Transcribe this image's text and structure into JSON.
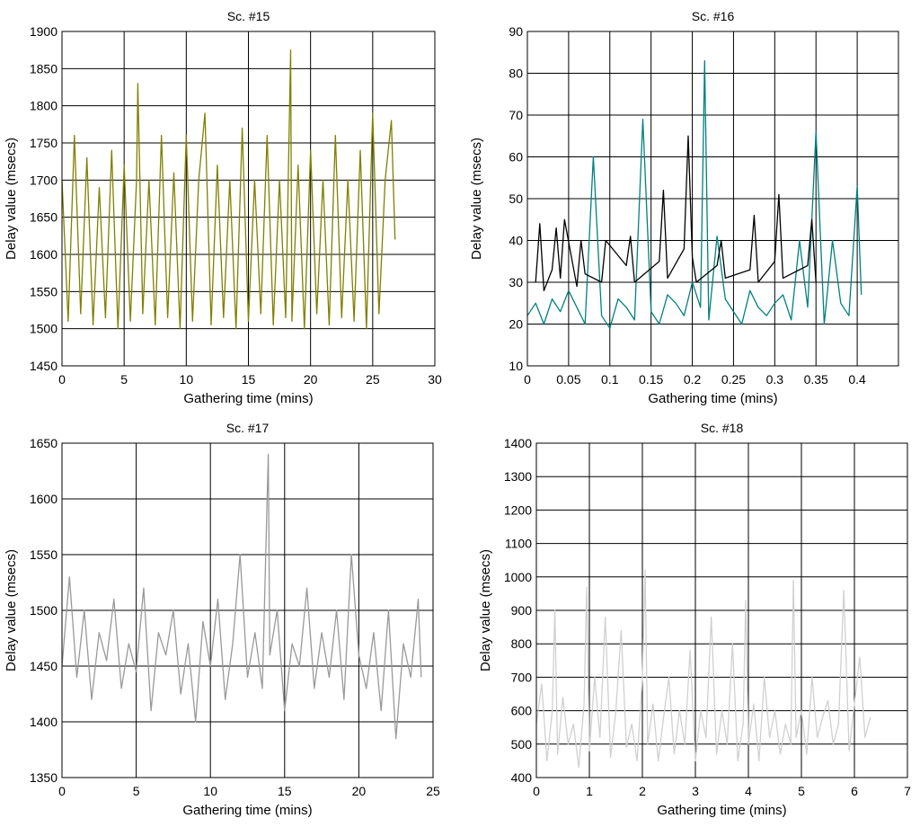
{
  "chart_data": [
    {
      "type": "line",
      "title": "Sc. #15",
      "xlabel": "Gathering time (mins)",
      "ylabel": "Delay value (msecs)",
      "xlim": [
        0,
        30
      ],
      "ylim": [
        1450,
        1900
      ],
      "xticks": [
        0,
        5,
        10,
        15,
        20,
        25,
        30
      ],
      "yticks": [
        1450,
        1500,
        1550,
        1600,
        1650,
        1700,
        1750,
        1800,
        1850,
        1900
      ],
      "xtick_labels": [
        "0",
        "5",
        "10",
        "15",
        "20",
        "25",
        "30"
      ],
      "ytick_labels": [
        "1450",
        "1500",
        "1550",
        "1600",
        "1650",
        "1700",
        "1750",
        "1800",
        "1850",
        "1900"
      ],
      "grid": true,
      "series": [
        {
          "color": "#808000",
          "x": [
            0,
            0.5,
            1,
            1.5,
            2,
            2.5,
            3,
            3.5,
            4,
            4.5,
            5,
            5.5,
            6,
            6.1,
            6.5,
            7,
            7.5,
            8,
            8.5,
            9,
            9.5,
            10,
            10.5,
            11,
            11.5,
            12,
            12.5,
            13,
            13.5,
            14,
            14.5,
            15,
            15.5,
            16,
            16.5,
            17,
            17.5,
            18,
            18.4,
            18.5,
            19,
            19.5,
            20,
            20.5,
            21,
            21.5,
            22,
            22.5,
            23,
            23.5,
            24,
            24.5,
            25,
            25.5,
            26,
            26.5,
            26.8
          ],
          "y": [
            1700,
            1510,
            1760,
            1520,
            1730,
            1505,
            1690,
            1515,
            1740,
            1500,
            1720,
            1510,
            1700,
            1830,
            1520,
            1700,
            1505,
            1760,
            1515,
            1710,
            1500,
            1760,
            1510,
            1700,
            1790,
            1505,
            1720,
            1515,
            1700,
            1500,
            1770,
            1510,
            1700,
            1520,
            1760,
            1505,
            1700,
            1515,
            1875,
            1510,
            1720,
            1500,
            1740,
            1520,
            1700,
            1505,
            1760,
            1515,
            1700,
            1510,
            1740,
            1500,
            1790,
            1520,
            1700,
            1780,
            1620
          ]
        }
      ]
    },
    {
      "type": "line",
      "title": "Sc. #16",
      "xlabel": "Gathering time (mins)",
      "ylabel": "Delay value (msecs)",
      "xlim": [
        0,
        0.45
      ],
      "ylim": [
        10,
        90
      ],
      "xticks": [
        0,
        0.05,
        0.1,
        0.15,
        0.2,
        0.25,
        0.3,
        0.35,
        0.4
      ],
      "yticks": [
        10,
        20,
        30,
        40,
        50,
        60,
        70,
        80,
        90
      ],
      "xtick_labels": [
        "0",
        "0.05",
        "0.1",
        "0.15",
        "0.2",
        "0.25",
        "0.3",
        "0.35",
        "0.4"
      ],
      "ytick_labels": [
        "10",
        "20",
        "30",
        "40",
        "50",
        "60",
        "70",
        "80",
        "90"
      ],
      "grid": true,
      "series": [
        {
          "color": "#008080",
          "x": [
            0,
            0.01,
            0.02,
            0.03,
            0.04,
            0.05,
            0.06,
            0.07,
            0.08,
            0.09,
            0.1,
            0.11,
            0.12,
            0.13,
            0.14,
            0.15,
            0.16,
            0.17,
            0.18,
            0.19,
            0.2,
            0.21,
            0.215,
            0.22,
            0.23,
            0.24,
            0.25,
            0.26,
            0.27,
            0.28,
            0.29,
            0.3,
            0.31,
            0.32,
            0.33,
            0.34,
            0.35,
            0.36,
            0.37,
            0.38,
            0.39,
            0.4,
            0.405
          ],
          "y": [
            22,
            25,
            20,
            26,
            23,
            28,
            24,
            20,
            60,
            22,
            19,
            26,
            24,
            21,
            69,
            23,
            20,
            27,
            25,
            22,
            30,
            24,
            83,
            21,
            41,
            26,
            23,
            20,
            28,
            24,
            22,
            25,
            27,
            21,
            40,
            24,
            66,
            20,
            40,
            25,
            22,
            53,
            27
          ]
        },
        {
          "color": "#000000",
          "x": [
            0.01,
            0.015,
            0.02,
            0.03,
            0.035,
            0.04,
            0.045,
            0.06,
            0.065,
            0.07,
            0.09,
            0.095,
            0.12,
            0.125,
            0.13,
            0.16,
            0.165,
            0.17,
            0.19,
            0.195,
            0.2,
            0.205,
            0.23,
            0.235,
            0.24,
            0.27,
            0.275,
            0.28,
            0.3,
            0.305,
            0.31,
            0.34,
            0.345,
            0.35
          ],
          "y": [
            30,
            44,
            28,
            33,
            43,
            31,
            45,
            29,
            40,
            32,
            30,
            40,
            34,
            41,
            30,
            35,
            52,
            31,
            38,
            65,
            36,
            30,
            34,
            40,
            31,
            33,
            46,
            30,
            35,
            51,
            31,
            34,
            45,
            30
          ]
        }
      ]
    },
    {
      "type": "line",
      "title": "Sc. #17",
      "xlabel": "Gathering time (mins)",
      "ylabel": "Delay value (msecs)",
      "xlim": [
        0,
        25
      ],
      "ylim": [
        1350,
        1650
      ],
      "xticks": [
        0,
        5,
        10,
        15,
        20,
        25
      ],
      "yticks": [
        1350,
        1400,
        1450,
        1500,
        1550,
        1600,
        1650
      ],
      "xtick_labels": [
        "0",
        "5",
        "10",
        "15",
        "20",
        "25"
      ],
      "ytick_labels": [
        "1350",
        "1400",
        "1450",
        "1500",
        "1550",
        "1600",
        "1650"
      ],
      "grid": true,
      "series": [
        {
          "color": "#999999",
          "x": [
            0,
            0.5,
            1,
            1.5,
            2,
            2.5,
            3,
            3.5,
            4,
            4.5,
            5,
            5.5,
            6,
            6.5,
            7,
            7.5,
            8,
            8.5,
            9,
            9.5,
            10,
            10.5,
            11,
            11.5,
            12,
            12.5,
            13,
            13.5,
            13.9,
            14,
            14.5,
            15,
            15.5,
            16,
            16.5,
            17,
            17.5,
            18,
            18.5,
            19,
            19.5,
            20,
            20.5,
            21,
            21.5,
            22,
            22.5,
            23,
            23.5,
            24,
            24.2
          ],
          "y": [
            1450,
            1530,
            1440,
            1500,
            1420,
            1480,
            1455,
            1510,
            1430,
            1470,
            1445,
            1520,
            1410,
            1480,
            1460,
            1500,
            1425,
            1470,
            1400,
            1490,
            1450,
            1510,
            1420,
            1470,
            1550,
            1440,
            1480,
            1430,
            1640,
            1460,
            1500,
            1410,
            1470,
            1450,
            1520,
            1430,
            1480,
            1440,
            1500,
            1420,
            1550,
            1460,
            1430,
            1480,
            1410,
            1500,
            1385,
            1470,
            1440,
            1510,
            1440
          ]
        }
      ]
    },
    {
      "type": "line",
      "title": "Sc. #18",
      "xlabel": "Gathering time (mins)",
      "ylabel": "Delay value (msecs)",
      "xlim": [
        0,
        7
      ],
      "ylim": [
        400,
        1400
      ],
      "xticks": [
        0,
        1,
        2,
        3,
        4,
        5,
        6,
        7
      ],
      "yticks": [
        400,
        500,
        600,
        700,
        800,
        900,
        1000,
        1100,
        1200,
        1300,
        1400
      ],
      "xtick_labels": [
        "0",
        "1",
        "2",
        "3",
        "4",
        "5",
        "6",
        "7"
      ],
      "ytick_labels": [
        "400",
        "500",
        "600",
        "700",
        "800",
        "900",
        "1000",
        "1100",
        "1200",
        "1300",
        "1400"
      ],
      "grid": true,
      "series": [
        {
          "color": "#d0d0d0",
          "x": [
            0,
            0.1,
            0.2,
            0.3,
            0.35,
            0.4,
            0.5,
            0.6,
            0.7,
            0.8,
            0.9,
            0.95,
            1,
            1.1,
            1.2,
            1.3,
            1.4,
            1.5,
            1.6,
            1.7,
            1.8,
            1.9,
            2,
            2.05,
            2.1,
            2.2,
            2.3,
            2.4,
            2.5,
            2.6,
            2.7,
            2.8,
            2.9,
            3,
            3.1,
            3.2,
            3.3,
            3.4,
            3.5,
            3.6,
            3.7,
            3.8,
            3.9,
            3.95,
            4,
            4.1,
            4.2,
            4.3,
            4.4,
            4.5,
            4.6,
            4.7,
            4.8,
            4.85,
            4.9,
            5,
            5.1,
            5.2,
            5.3,
            5.4,
            5.5,
            5.6,
            5.7,
            5.8,
            5.9,
            6,
            6.1,
            6.2,
            6.3
          ],
          "y": [
            560,
            680,
            450,
            600,
            900,
            470,
            640,
            500,
            560,
            430,
            620,
            970,
            480,
            700,
            520,
            880,
            460,
            600,
            840,
            490,
            560,
            450,
            700,
            1020,
            500,
            620,
            450,
            580,
            700,
            470,
            600,
            500,
            780,
            450,
            600,
            520,
            880,
            470,
            600,
            500,
            800,
            450,
            560,
            930,
            500,
            620,
            450,
            700,
            520,
            600,
            470,
            560,
            500,
            990,
            520,
            600,
            470,
            700,
            520,
            580,
            630,
            500,
            560,
            960,
            480,
            620,
            760,
            520,
            580
          ]
        }
      ]
    }
  ]
}
